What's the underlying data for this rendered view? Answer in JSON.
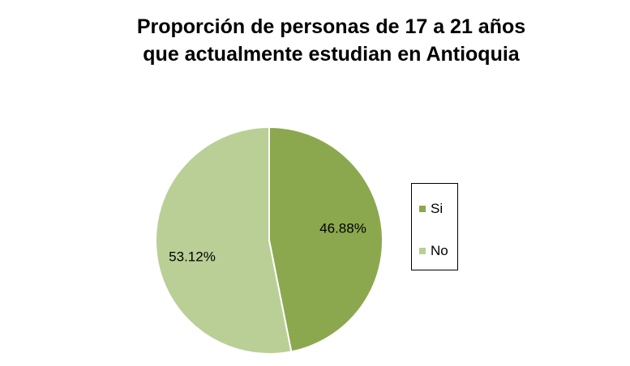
{
  "chart_data": {
    "type": "pie",
    "title_lines": [
      "Proporción de personas de 17 a 21 años",
      "que actualmente estudian en Antioquia"
    ],
    "slices": [
      {
        "label": "Si",
        "value": 46.88,
        "data_label": "46.88%",
        "color": "#8ba84e"
      },
      {
        "label": "No",
        "value": 53.12,
        "data_label": "53.12%",
        "color": "#b9cf96"
      }
    ],
    "legend_position": "right"
  }
}
